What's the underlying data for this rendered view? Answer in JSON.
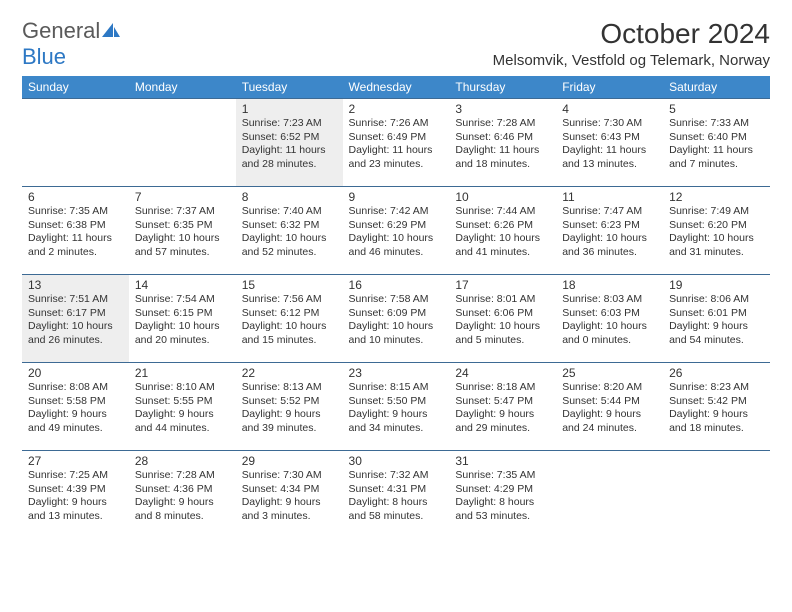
{
  "logo": {
    "word1": "General",
    "word2": "Blue"
  },
  "title": "October 2024",
  "location": "Melsomvik, Vestfold og Telemark, Norway",
  "colors": {
    "header_bg": "#3d87c9",
    "header_fg": "#ffffff",
    "row_border": "#3d6a94",
    "shaded_bg": "#eeeeee",
    "logo_gray": "#5a5a5a",
    "logo_blue": "#2d78c4",
    "text": "#333333",
    "page_bg": "#ffffff"
  },
  "day_headers": [
    "Sunday",
    "Monday",
    "Tuesday",
    "Wednesday",
    "Thursday",
    "Friday",
    "Saturday"
  ],
  "weeks": [
    [
      null,
      null,
      {
        "n": "1",
        "sr": "Sunrise: 7:23 AM",
        "ss": "Sunset: 6:52 PM",
        "dl": "Daylight: 11 hours and 28 minutes.",
        "sh": true
      },
      {
        "n": "2",
        "sr": "Sunrise: 7:26 AM",
        "ss": "Sunset: 6:49 PM",
        "dl": "Daylight: 11 hours and 23 minutes."
      },
      {
        "n": "3",
        "sr": "Sunrise: 7:28 AM",
        "ss": "Sunset: 6:46 PM",
        "dl": "Daylight: 11 hours and 18 minutes."
      },
      {
        "n": "4",
        "sr": "Sunrise: 7:30 AM",
        "ss": "Sunset: 6:43 PM",
        "dl": "Daylight: 11 hours and 13 minutes."
      },
      {
        "n": "5",
        "sr": "Sunrise: 7:33 AM",
        "ss": "Sunset: 6:40 PM",
        "dl": "Daylight: 11 hours and 7 minutes."
      }
    ],
    [
      {
        "n": "6",
        "sr": "Sunrise: 7:35 AM",
        "ss": "Sunset: 6:38 PM",
        "dl": "Daylight: 11 hours and 2 minutes."
      },
      {
        "n": "7",
        "sr": "Sunrise: 7:37 AM",
        "ss": "Sunset: 6:35 PM",
        "dl": "Daylight: 10 hours and 57 minutes."
      },
      {
        "n": "8",
        "sr": "Sunrise: 7:40 AM",
        "ss": "Sunset: 6:32 PM",
        "dl": "Daylight: 10 hours and 52 minutes."
      },
      {
        "n": "9",
        "sr": "Sunrise: 7:42 AM",
        "ss": "Sunset: 6:29 PM",
        "dl": "Daylight: 10 hours and 46 minutes."
      },
      {
        "n": "10",
        "sr": "Sunrise: 7:44 AM",
        "ss": "Sunset: 6:26 PM",
        "dl": "Daylight: 10 hours and 41 minutes."
      },
      {
        "n": "11",
        "sr": "Sunrise: 7:47 AM",
        "ss": "Sunset: 6:23 PM",
        "dl": "Daylight: 10 hours and 36 minutes."
      },
      {
        "n": "12",
        "sr": "Sunrise: 7:49 AM",
        "ss": "Sunset: 6:20 PM",
        "dl": "Daylight: 10 hours and 31 minutes."
      }
    ],
    [
      {
        "n": "13",
        "sr": "Sunrise: 7:51 AM",
        "ss": "Sunset: 6:17 PM",
        "dl": "Daylight: 10 hours and 26 minutes.",
        "sh": true
      },
      {
        "n": "14",
        "sr": "Sunrise: 7:54 AM",
        "ss": "Sunset: 6:15 PM",
        "dl": "Daylight: 10 hours and 20 minutes."
      },
      {
        "n": "15",
        "sr": "Sunrise: 7:56 AM",
        "ss": "Sunset: 6:12 PM",
        "dl": "Daylight: 10 hours and 15 minutes."
      },
      {
        "n": "16",
        "sr": "Sunrise: 7:58 AM",
        "ss": "Sunset: 6:09 PM",
        "dl": "Daylight: 10 hours and 10 minutes."
      },
      {
        "n": "17",
        "sr": "Sunrise: 8:01 AM",
        "ss": "Sunset: 6:06 PM",
        "dl": "Daylight: 10 hours and 5 minutes."
      },
      {
        "n": "18",
        "sr": "Sunrise: 8:03 AM",
        "ss": "Sunset: 6:03 PM",
        "dl": "Daylight: 10 hours and 0 minutes."
      },
      {
        "n": "19",
        "sr": "Sunrise: 8:06 AM",
        "ss": "Sunset: 6:01 PM",
        "dl": "Daylight: 9 hours and 54 minutes."
      }
    ],
    [
      {
        "n": "20",
        "sr": "Sunrise: 8:08 AM",
        "ss": "Sunset: 5:58 PM",
        "dl": "Daylight: 9 hours and 49 minutes."
      },
      {
        "n": "21",
        "sr": "Sunrise: 8:10 AM",
        "ss": "Sunset: 5:55 PM",
        "dl": "Daylight: 9 hours and 44 minutes."
      },
      {
        "n": "22",
        "sr": "Sunrise: 8:13 AM",
        "ss": "Sunset: 5:52 PM",
        "dl": "Daylight: 9 hours and 39 minutes."
      },
      {
        "n": "23",
        "sr": "Sunrise: 8:15 AM",
        "ss": "Sunset: 5:50 PM",
        "dl": "Daylight: 9 hours and 34 minutes."
      },
      {
        "n": "24",
        "sr": "Sunrise: 8:18 AM",
        "ss": "Sunset: 5:47 PM",
        "dl": "Daylight: 9 hours and 29 minutes."
      },
      {
        "n": "25",
        "sr": "Sunrise: 8:20 AM",
        "ss": "Sunset: 5:44 PM",
        "dl": "Daylight: 9 hours and 24 minutes."
      },
      {
        "n": "26",
        "sr": "Sunrise: 8:23 AM",
        "ss": "Sunset: 5:42 PM",
        "dl": "Daylight: 9 hours and 18 minutes."
      }
    ],
    [
      {
        "n": "27",
        "sr": "Sunrise: 7:25 AM",
        "ss": "Sunset: 4:39 PM",
        "dl": "Daylight: 9 hours and 13 minutes."
      },
      {
        "n": "28",
        "sr": "Sunrise: 7:28 AM",
        "ss": "Sunset: 4:36 PM",
        "dl": "Daylight: 9 hours and 8 minutes."
      },
      {
        "n": "29",
        "sr": "Sunrise: 7:30 AM",
        "ss": "Sunset: 4:34 PM",
        "dl": "Daylight: 9 hours and 3 minutes."
      },
      {
        "n": "30",
        "sr": "Sunrise: 7:32 AM",
        "ss": "Sunset: 4:31 PM",
        "dl": "Daylight: 8 hours and 58 minutes."
      },
      {
        "n": "31",
        "sr": "Sunrise: 7:35 AM",
        "ss": "Sunset: 4:29 PM",
        "dl": "Daylight: 8 hours and 53 minutes."
      },
      null,
      null
    ]
  ]
}
